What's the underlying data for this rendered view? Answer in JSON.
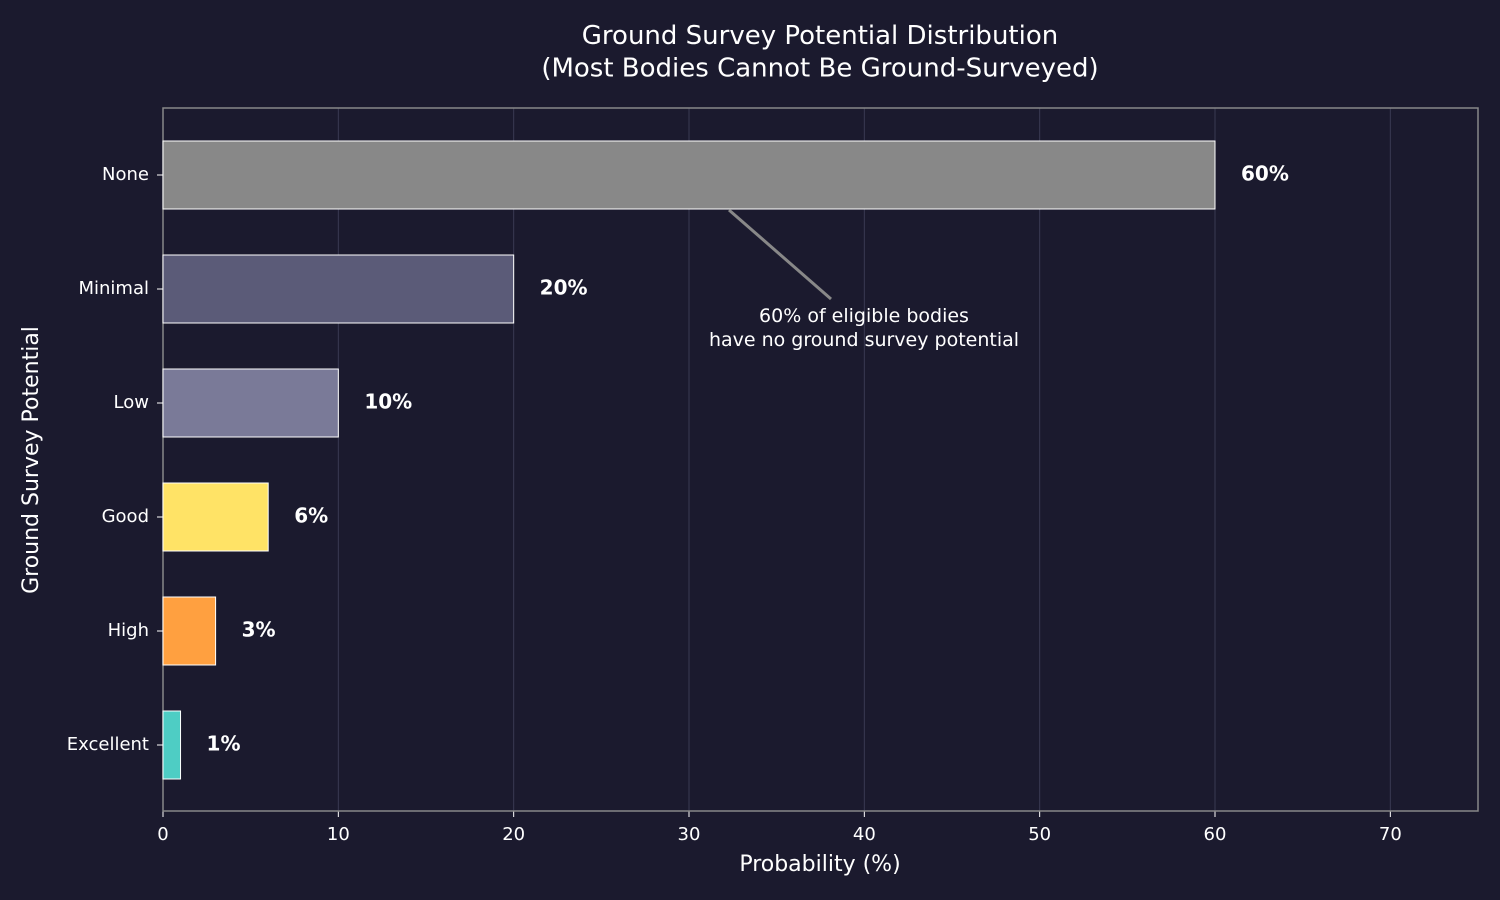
{
  "chart_data": {
    "type": "barh",
    "title": "Ground Survey Potential Distribution\n(Most Bodies Cannot Be Ground-Surveyed)",
    "x_label": "Probability (%)",
    "y_label": "Ground Survey Potential",
    "categories": [
      "None",
      "Minimal",
      "Low",
      "Good",
      "High",
      "Excellent"
    ],
    "values": [
      60,
      20,
      10,
      6,
      3,
      1
    ],
    "value_labels": [
      "60%",
      "20%",
      "10%",
      "6%",
      "3%",
      "1%"
    ],
    "colors": [
      "#888888",
      "#5b5b78",
      "#7a7a98",
      "#ffe366",
      "#ffa040",
      "#4ecdc4"
    ],
    "xlim": [
      0,
      75
    ],
    "xticks": [
      0,
      10,
      20,
      30,
      40,
      50,
      60,
      70
    ],
    "grid": true,
    "annotation": "60% of eligible bodies\nhave no ground survey potential"
  }
}
